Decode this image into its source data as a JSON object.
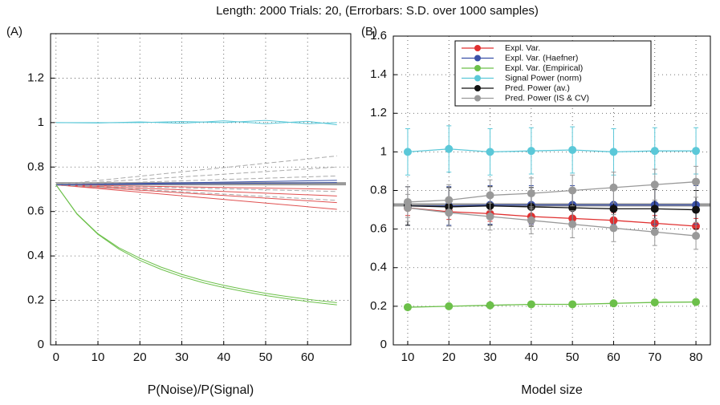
{
  "title": "Length: 2000 Trials: 20, (Errorbars: S.D. over 1000 samples)",
  "chart_data": [
    {
      "type": "line",
      "panel_label": "(A)",
      "x_label": "P(Noise)/P(Signal)",
      "xlim": [
        -1.3,
        70.3
      ],
      "xticks": [
        0,
        10,
        20,
        30,
        40,
        50,
        60
      ],
      "ylim": [
        0,
        1.4
      ],
      "yticks": [
        0,
        0.2,
        0.4,
        0.6,
        0.8,
        1,
        1.2
      ],
      "grid": true,
      "reference_line": 0.725,
      "reference_color": "#999999",
      "series": [
        {
          "color": "#5bc8d8",
          "x": [
            0,
            10,
            20,
            30,
            40,
            50,
            60,
            67
          ],
          "values": [
            1.0,
            1.0,
            1.0,
            1.005,
            1.0,
            1.01,
            0.995,
            1.0
          ]
        },
        {
          "color": "#5bc8d8",
          "x": [
            0,
            10,
            20,
            30,
            40,
            50,
            60,
            67
          ],
          "values": [
            1.0,
            0.998,
            1.003,
            0.997,
            1.008,
            0.995,
            1.006,
            0.99
          ]
        },
        {
          "color": "#e05050",
          "x": [
            0,
            67
          ],
          "values": [
            0.72,
            0.7
          ]
        },
        {
          "color": "#e05050",
          "x": [
            0,
            67
          ],
          "values": [
            0.72,
            0.67
          ]
        },
        {
          "color": "#e05050",
          "x": [
            0,
            67
          ],
          "values": [
            0.72,
            0.64
          ]
        },
        {
          "color": "#e05050",
          "x": [
            0,
            67
          ],
          "values": [
            0.72,
            0.61
          ]
        },
        {
          "color": "#aaaaaa",
          "dashed": true,
          "x": [
            0,
            67
          ],
          "values": [
            0.72,
            0.85
          ]
        },
        {
          "color": "#aaaaaa",
          "dashed": true,
          "x": [
            0,
            67
          ],
          "values": [
            0.72,
            0.8
          ]
        },
        {
          "color": "#aaaaaa",
          "dashed": true,
          "x": [
            0,
            67
          ],
          "values": [
            0.72,
            0.76
          ]
        },
        {
          "color": "#aaaaaa",
          "dashed": true,
          "x": [
            0,
            67
          ],
          "values": [
            0.72,
            0.69
          ]
        },
        {
          "color": "#aaaaaa",
          "dashed": true,
          "x": [
            0,
            67
          ],
          "values": [
            0.72,
            0.65
          ]
        },
        {
          "color": "#3a50a8",
          "x": [
            0,
            67
          ],
          "values": [
            0.72,
            0.74
          ]
        },
        {
          "color": "#3a50a8",
          "x": [
            0,
            67
          ],
          "values": [
            0.72,
            0.73
          ]
        },
        {
          "color": "#6cc04a",
          "x": [
            0,
            5,
            10,
            15,
            20,
            25,
            30,
            35,
            40,
            45,
            50,
            55,
            60,
            65,
            67
          ],
          "values": [
            0.72,
            0.588,
            0.497,
            0.431,
            0.38,
            0.34,
            0.307,
            0.28,
            0.258,
            0.239,
            0.222,
            0.208,
            0.195,
            0.184,
            0.18
          ]
        },
        {
          "color": "#6cc04a",
          "x": [
            0,
            5,
            10,
            15,
            20,
            25,
            30,
            35,
            40,
            45,
            50,
            55,
            60,
            65,
            67
          ],
          "values": [
            0.72,
            0.59,
            0.5,
            0.437,
            0.39,
            0.35,
            0.317,
            0.29,
            0.268,
            0.249,
            0.232,
            0.218,
            0.205,
            0.194,
            0.19
          ]
        }
      ]
    },
    {
      "type": "errorbar",
      "panel_label": "(B)",
      "x_label": "Model size",
      "xlim": [
        6.5,
        83.5
      ],
      "xticks": [
        10,
        20,
        30,
        40,
        50,
        60,
        70,
        80
      ],
      "ylim": [
        0,
        1.6
      ],
      "yticks": [
        0,
        0.2,
        0.4,
        0.6,
        0.8,
        1,
        1.2,
        1.4,
        1.6
      ],
      "grid": true,
      "reference_line": 0.725,
      "reference_color": "#999999",
      "series": [
        {
          "name": "Expl. Var.",
          "color": "#e03030",
          "x": [
            10,
            20,
            30,
            40,
            50,
            60,
            70,
            80
          ],
          "values": [
            0.71,
            0.69,
            0.68,
            0.665,
            0.655,
            0.645,
            0.63,
            0.615
          ],
          "errors": [
            0.04,
            0.04,
            0.04,
            0.04,
            0.04,
            0.04,
            0.04,
            0.04
          ]
        },
        {
          "name": "Expl. Var. (Haefner)",
          "color": "#3a50a8",
          "x": [
            10,
            20,
            30,
            40,
            50,
            60,
            70,
            80
          ],
          "values": [
            0.72,
            0.72,
            0.725,
            0.725,
            0.725,
            0.725,
            0.725,
            0.725
          ],
          "errors": [
            0.1,
            0.1,
            0.1,
            0.1,
            0.1,
            0.1,
            0.1,
            0.1
          ]
        },
        {
          "name": "Expl. Var. (Empirical)",
          "color": "#6cc04a",
          "x": [
            10,
            20,
            30,
            40,
            50,
            60,
            70,
            80
          ],
          "values": [
            0.195,
            0.2,
            0.205,
            0.21,
            0.21,
            0.215,
            0.22,
            0.222
          ],
          "errors": [
            0.01,
            0.01,
            0.01,
            0.01,
            0.01,
            0.01,
            0.01,
            0.01
          ]
        },
        {
          "name": "Signal Power (norm)",
          "color": "#5bc8d8",
          "x": [
            10,
            20,
            30,
            40,
            50,
            60,
            70,
            80
          ],
          "values": [
            1.0,
            1.015,
            1.0,
            1.005,
            1.01,
            1.0,
            1.005,
            1.005
          ],
          "errors": [
            0.12,
            0.12,
            0.12,
            0.12,
            0.12,
            0.12,
            0.12,
            0.12
          ]
        },
        {
          "name": "Pred. Power (av.)",
          "color": "#111111",
          "x": [
            10,
            20,
            30,
            40,
            50,
            60,
            70,
            80
          ],
          "values": [
            0.72,
            0.715,
            0.72,
            0.715,
            0.71,
            0.705,
            0.705,
            0.7
          ],
          "errors": [
            0.1,
            0.1,
            0.1,
            0.1,
            0.1,
            0.1,
            0.1,
            0.1
          ]
        },
        {
          "name": "Pred. Power (IS & CV)",
          "color": "#999999",
          "x": [
            10,
            20,
            30,
            40,
            50,
            60,
            70,
            80
          ],
          "values": [
            0.74,
            0.75,
            0.775,
            0.785,
            0.8,
            0.815,
            0.83,
            0.845
          ],
          "errors": [
            0.08,
            0.08,
            0.08,
            0.08,
            0.08,
            0.08,
            0.08,
            0.08
          ]
        },
        {
          "color": "#999999",
          "x": [
            10,
            20,
            30,
            40,
            50,
            60,
            70,
            80
          ],
          "values": [
            0.71,
            0.685,
            0.665,
            0.645,
            0.625,
            0.605,
            0.585,
            0.565
          ],
          "errors": [
            0.07,
            0.07,
            0.07,
            0.07,
            0.07,
            0.07,
            0.07,
            0.07
          ]
        }
      ]
    }
  ]
}
